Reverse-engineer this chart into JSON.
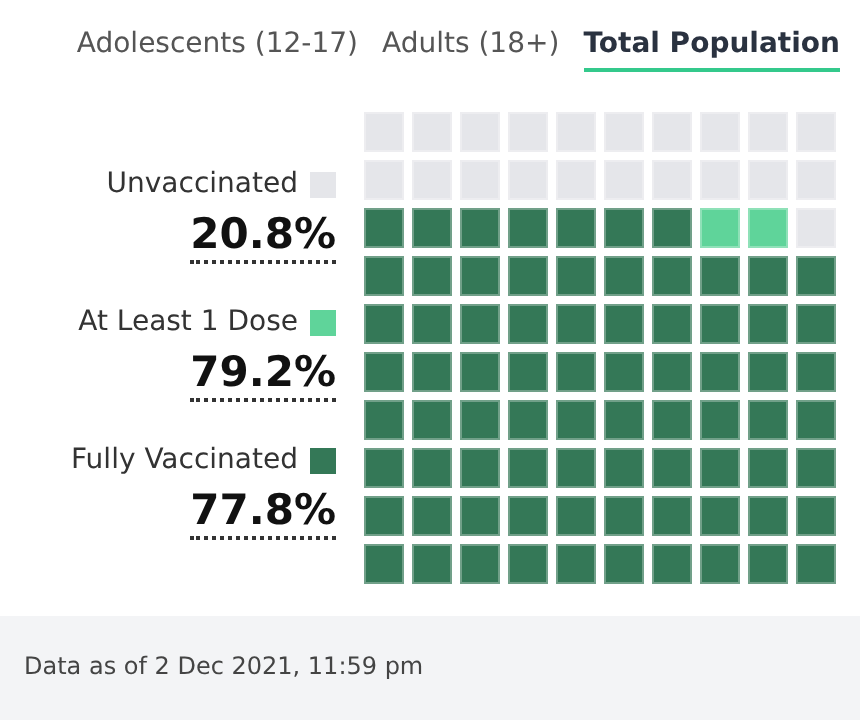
{
  "chart_data": {
    "type": "other",
    "categories": [
      "Unvaccinated",
      "At Least 1 Dose",
      "Fully Vaccinated"
    ],
    "values": [
      20.8,
      79.2,
      77.8
    ],
    "value_labels": [
      "20.8%",
      "79.2%",
      "77.8%"
    ],
    "colors": [
      "#e5e6ea",
      "#5fd49a",
      "#347857"
    ],
    "annotations": [
      "Adolescents (12-17)",
      "Adults (18+)",
      "Total Population",
      "Data as of 2 Dec 2021, 11:59 pm"
    ]
  }
}
